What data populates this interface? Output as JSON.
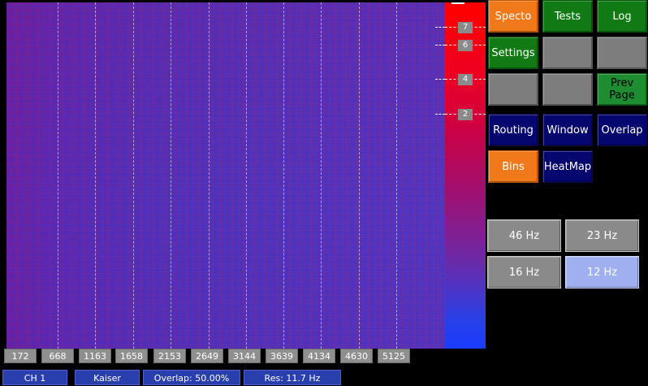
{
  "scale_markers": [
    "7",
    "6",
    "4",
    "2"
  ],
  "freq_labels": [
    "172",
    "668",
    "1163",
    "1658",
    "2153",
    "2649",
    "3144",
    "3639",
    "4134",
    "4630",
    "5125"
  ],
  "status": {
    "channel": "CH 1",
    "window": "Kaiser",
    "overlap": "Overlap: 50.00%",
    "resolution": "Res: 11.7 Hz"
  },
  "buttons": {
    "specto": "Specto",
    "tests": "Tests",
    "log": "Log",
    "settings": "Settings",
    "prev_page": "Prev Page",
    "routing": "Routing",
    "window": "Window",
    "overlap": "Overlap",
    "bins": "Bins",
    "heatmap": "HeatMap"
  },
  "resolution_options": [
    "46 Hz",
    "23 Hz",
    "16 Hz",
    "12 Hz"
  ],
  "selected_resolution": "12 Hz",
  "colors": {
    "orange": "#f07a1a",
    "green": "#117a14",
    "navy": "#06066f",
    "gray": "#7d7d7d",
    "status_blue": "#2a3fae",
    "selected_hz": "#9fb0f0"
  }
}
